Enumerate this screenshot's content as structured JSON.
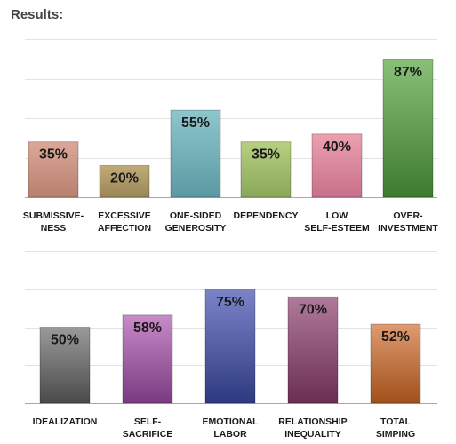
{
  "heading": "Results:",
  "chart_data": [
    {
      "type": "bar",
      "title": "",
      "xlabel": "",
      "ylabel": "",
      "ylim": [
        0,
        100
      ],
      "grid": true,
      "categories": [
        [
          "SUBMISSIVE-",
          "NESS"
        ],
        [
          "EXCESSIVE",
          "AFFECTION"
        ],
        [
          "ONE-SIDED",
          "GENEROSITY"
        ],
        [
          "DEPENDENCY"
        ],
        [
          "LOW",
          "SELF-ESTEEM"
        ],
        [
          "OVER-",
          "INVESTMENT"
        ]
      ],
      "values": [
        35,
        20,
        55,
        35,
        40,
        87
      ],
      "data_labels": [
        "35%",
        "20%",
        "55%",
        "35%",
        "40%",
        "87%"
      ],
      "colors": [
        [
          "#dba898",
          "#b8806e"
        ],
        [
          "#c0aa78",
          "#9a8657"
        ],
        [
          "#8ec6cc",
          "#5a9aa3"
        ],
        [
          "#b7cf80",
          "#8aa85a"
        ],
        [
          "#eba0b0",
          "#c8708a"
        ],
        [
          "#88c078",
          "#3e7a30"
        ]
      ]
    },
    {
      "type": "bar",
      "title": "",
      "xlabel": "",
      "ylabel": "",
      "ylim": [
        0,
        100
      ],
      "grid": true,
      "categories": [
        [
          "IDEALIZATION"
        ],
        [
          "SELF-",
          "SACRIFICE"
        ],
        [
          "EMOTIONAL",
          "LABOR"
        ],
        [
          "RELATIONSHIP",
          "INEQUALITY"
        ],
        [
          "TOTAL",
          "SIMPING"
        ]
      ],
      "values": [
        50,
        58,
        75,
        70,
        52
      ],
      "data_labels": [
        "50%",
        "58%",
        "75%",
        "70%",
        "52%"
      ],
      "colors": [
        [
          "#9a9a9a",
          "#4a4a4a"
        ],
        [
          "#c88ac8",
          "#7a3a80"
        ],
        [
          "#7c84c8",
          "#2e3a80"
        ],
        [
          "#b07a9a",
          "#6a2e52"
        ],
        [
          "#e09a70",
          "#a0501a"
        ]
      ]
    }
  ]
}
